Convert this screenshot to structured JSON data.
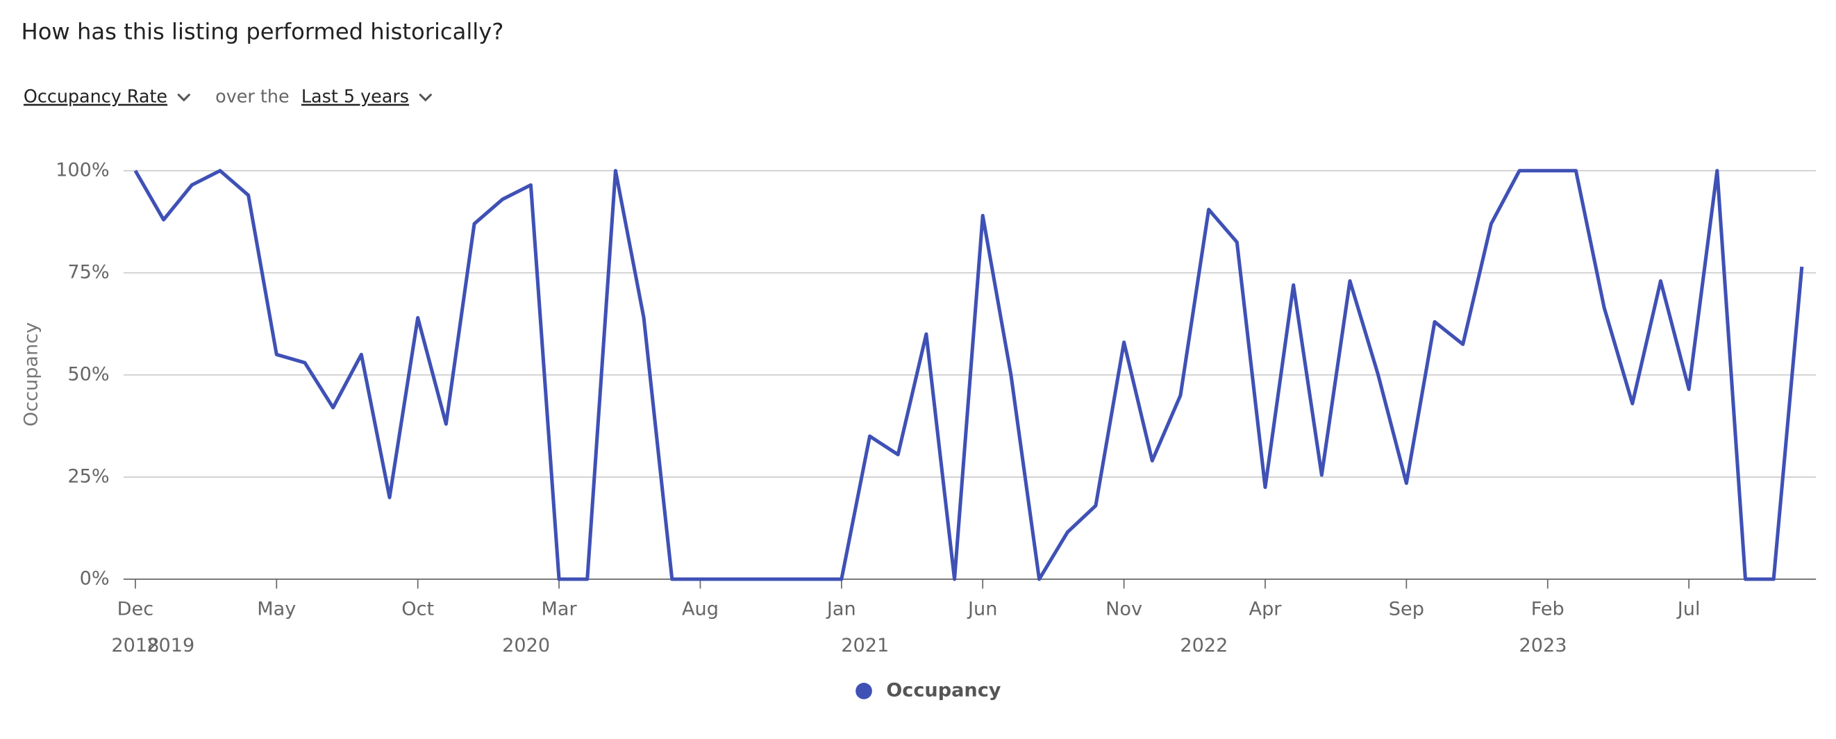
{
  "header": {
    "title": "How has this listing performed historically?",
    "metric": "Occupancy Rate",
    "connector": "over the",
    "period": "Last 5 years"
  },
  "chart_data": {
    "type": "line",
    "ylabel": "Occupancy",
    "categories": [
      "2018-12",
      "2019-01",
      "2019-02",
      "2019-03",
      "2019-04",
      "2019-05",
      "2019-06",
      "2019-07",
      "2019-08",
      "2019-09",
      "2019-10",
      "2019-11",
      "2019-12",
      "2020-01",
      "2020-02",
      "2020-03",
      "2020-04",
      "2020-05",
      "2020-06",
      "2020-07",
      "2020-08",
      "2020-09",
      "2020-10",
      "2020-11",
      "2020-12",
      "2021-01",
      "2021-02",
      "2021-03",
      "2021-04",
      "2021-05",
      "2021-06",
      "2021-07",
      "2021-08",
      "2021-09",
      "2021-10",
      "2021-11",
      "2021-12",
      "2022-01",
      "2022-02",
      "2022-03",
      "2022-04",
      "2022-05",
      "2022-06",
      "2022-07",
      "2022-08",
      "2022-09",
      "2022-10",
      "2022-11",
      "2022-12",
      "2023-01",
      "2023-02",
      "2023-03",
      "2023-04",
      "2023-05",
      "2023-06",
      "2023-07",
      "2023-08",
      "2023-09",
      "2023-10",
      "2023-11"
    ],
    "series": [
      {
        "name": "Occupancy",
        "color": "#3f51b5",
        "values": [
          100,
          88,
          96.5,
          100,
          94,
          55,
          53,
          42,
          55,
          20,
          64,
          38,
          87,
          93,
          96.5,
          0,
          0,
          100,
          64,
          0,
          0,
          0,
          0,
          0,
          0,
          0,
          35,
          30.5,
          60,
          0,
          89,
          50,
          0,
          11.5,
          18,
          58,
          29,
          45,
          90.5,
          82.5,
          22.5,
          72,
          25.5,
          73,
          50,
          23.5,
          63,
          57.5,
          87,
          100,
          100,
          100,
          66.5,
          43,
          73,
          46.5,
          100,
          0,
          0,
          76.5
        ]
      }
    ],
    "ylim": [
      0,
      100
    ],
    "yticks": [
      {
        "value": 0,
        "label": "0%"
      },
      {
        "value": 25,
        "label": "25%"
      },
      {
        "value": 50,
        "label": "50%"
      },
      {
        "value": 75,
        "label": "75%"
      },
      {
        "value": 100,
        "label": "100%"
      }
    ],
    "xticks": [
      {
        "value": "2018-12",
        "label": "Dec"
      },
      {
        "value": "2019-05",
        "label": "May"
      },
      {
        "value": "2019-10",
        "label": "Oct"
      },
      {
        "value": "2020-03",
        "label": "Mar"
      },
      {
        "value": "2020-08",
        "label": "Aug"
      },
      {
        "value": "2021-01",
        "label": "Jan"
      },
      {
        "value": "2021-06",
        "label": "Jun"
      },
      {
        "value": "2021-11",
        "label": "Nov"
      },
      {
        "value": "2022-04",
        "label": "Apr"
      },
      {
        "value": "2022-09",
        "label": "Sep"
      },
      {
        "value": "2023-02",
        "label": "Feb"
      },
      {
        "value": "2023-07",
        "label": "Jul"
      }
    ],
    "year_labels": [
      {
        "value": "2018-12",
        "label": "2018"
      },
      {
        "value": "2019-01",
        "label": "2019"
      },
      {
        "value": "2020-01",
        "label": "2020"
      },
      {
        "value": "2021-01",
        "label": "2021"
      },
      {
        "value": "2022-01",
        "label": "2022"
      },
      {
        "value": "2023-01",
        "label": "2023"
      }
    ],
    "grid": true,
    "legend": "bottom"
  }
}
